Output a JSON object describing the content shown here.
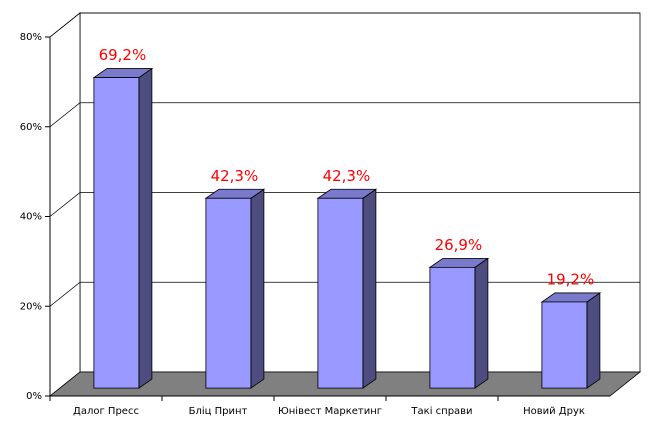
{
  "chart_data": {
    "type": "bar3d",
    "categories": [
      "Далог Пресс",
      "Бліц Принт",
      "Юнівест Маркетинг",
      "Такі справи",
      "Новий Друк"
    ],
    "values": [
      69.2,
      42.3,
      42.3,
      26.9,
      19.2
    ],
    "value_labels": [
      "69,2%",
      "42,3%",
      "42,3%",
      "26,9%",
      "19,2%"
    ],
    "color": "#9999ff",
    "ylim": [
      0,
      80
    ],
    "yticks": [
      {
        "value": 0,
        "label": "0%"
      },
      {
        "value": 20,
        "label": "20%"
      },
      {
        "value": 40,
        "label": "40%"
      },
      {
        "value": 60,
        "label": "60%"
      },
      {
        "value": 80,
        "label": "80%"
      }
    ],
    "grid": true
  }
}
